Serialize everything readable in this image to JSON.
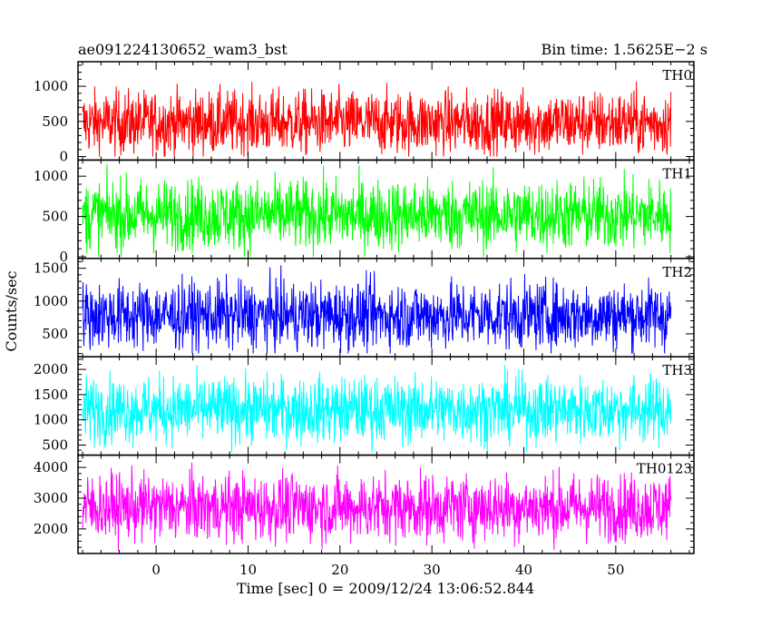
{
  "chart_data": {
    "type": "line",
    "title_left": "ae091224130652_wam3_bst",
    "title_right": "Bin time: 1.5625E−2 s",
    "xlabel": "Time [sec] 0 = 2009/12/24 13:06:52.844",
    "ylabel": "Counts/sec",
    "xlim": [
      -8.5,
      58.5
    ],
    "data_xrange": [
      -8.0,
      56.0
    ],
    "x_ticks": [
      0,
      10,
      20,
      30,
      40,
      50
    ],
    "panels": [
      {
        "name": "TH0",
        "color": "#ff0000",
        "ylim": [
          -50,
          1350
        ],
        "y_ticks": [
          0,
          500,
          1000
        ],
        "baseline": 480,
        "noise": 230,
        "floor": 0,
        "ceiling": 1350
      },
      {
        "name": "TH1",
        "color": "#00ff00",
        "ylim": [
          -20,
          1200
        ],
        "y_ticks": [
          0,
          500,
          1000
        ],
        "baseline": 520,
        "noise": 220,
        "floor": 0,
        "ceiling": 1200
      },
      {
        "name": "TH2",
        "color": "#0000ff",
        "ylim": [
          150,
          1650
        ],
        "y_ticks": [
          500,
          1000,
          1500
        ],
        "baseline": 780,
        "noise": 260,
        "floor": 200,
        "ceiling": 1650
      },
      {
        "name": "TH3",
        "color": "#00ffff",
        "ylim": [
          300,
          2250
        ],
        "y_ticks": [
          500,
          1000,
          1500,
          2000
        ],
        "baseline": 1200,
        "noise": 330,
        "floor": 350,
        "ceiling": 2250
      },
      {
        "name": "TH0123",
        "color": "#ff00ff",
        "ylim": [
          1200,
          4400
        ],
        "y_ticks": [
          2000,
          3000,
          4000
        ],
        "baseline": 2700,
        "noise": 550,
        "floor": 1200,
        "ceiling": 4400
      }
    ],
    "grid": false,
    "legend": "none"
  }
}
